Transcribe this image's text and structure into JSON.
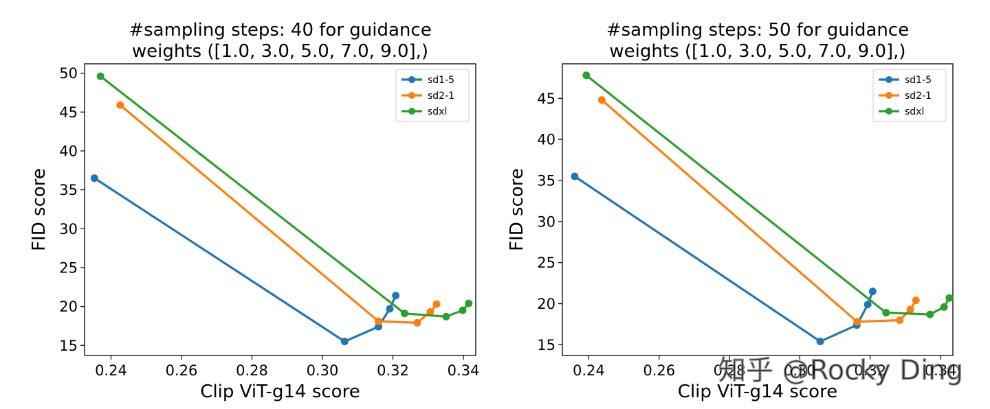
{
  "chart_data": [
    {
      "type": "line",
      "title_lines": [
        "#sampling steps: 40 for guidance",
        "weights ([1.0, 3.0, 5.0, 7.0, 9.0],)"
      ],
      "xlabel": "Clip ViT-g14 score",
      "ylabel": "FID score",
      "xlim": [
        0.2325,
        0.3435
      ],
      "ylim": [
        13.7,
        51.2
      ],
      "xticks": [
        0.24,
        0.26,
        0.28,
        0.3,
        0.32,
        0.34
      ],
      "xtick_labels": [
        "0.24",
        "0.26",
        "0.28",
        "0.30",
        "0.32",
        "0.34"
      ],
      "yticks": [
        15,
        20,
        25,
        30,
        35,
        40,
        45,
        50
      ],
      "ytick_labels": [
        "15",
        "20",
        "25",
        "30",
        "35",
        "40",
        "45",
        "50"
      ],
      "legend_position": "top-right",
      "series": [
        {
          "name": "sd1-5",
          "color": "#1f77b4",
          "x": [
            0.2353,
            0.3063,
            0.3159,
            0.3191,
            0.3208
          ],
          "y": [
            36.5,
            15.5,
            17.4,
            19.7,
            21.4
          ]
        },
        {
          "name": "sd2-1",
          "color": "#ff7f0e",
          "x": [
            0.2426,
            0.3159,
            0.3269,
            0.3306,
            0.3324
          ],
          "y": [
            45.9,
            18.1,
            17.9,
            19.3,
            20.3
          ]
        },
        {
          "name": "sdxl",
          "color": "#2ca02c",
          "x": [
            0.237,
            0.3233,
            0.3351,
            0.3398,
            0.3415
          ],
          "y": [
            49.6,
            19.1,
            18.7,
            19.5,
            20.4
          ]
        }
      ]
    },
    {
      "type": "line",
      "title_lines": [
        "#sampling steps: 50 for guidance",
        "weights ([1.0, 3.0, 5.0, 7.0, 9.0],)"
      ],
      "xlabel": "Clip ViT-g14 score",
      "ylabel": "FID score",
      "xlim": [
        0.2325,
        0.3435
      ],
      "ylim": [
        13.7,
        49.2
      ],
      "xticks": [
        0.24,
        0.26,
        0.28,
        0.3,
        0.32,
        0.34
      ],
      "xtick_labels": [
        "0.24",
        "0.26",
        "0.28",
        "0.30",
        "0.32",
        "0.34"
      ],
      "yticks": [
        15,
        20,
        25,
        30,
        35,
        40,
        45
      ],
      "ytick_labels": [
        "15",
        "20",
        "25",
        "30",
        "35",
        "40",
        "45"
      ],
      "legend_position": "top-right",
      "series": [
        {
          "name": "sd1-5",
          "color": "#1f77b4",
          "x": [
            0.236,
            0.3058,
            0.3162,
            0.3193,
            0.3207
          ],
          "y": [
            35.5,
            15.4,
            17.4,
            19.9,
            21.5
          ]
        },
        {
          "name": "sd2-1",
          "color": "#ff7f0e",
          "x": [
            0.2437,
            0.3163,
            0.3284,
            0.3314,
            0.333
          ],
          "y": [
            44.8,
            17.8,
            18.0,
            19.3,
            20.4
          ]
        },
        {
          "name": "sdxl",
          "color": "#2ca02c",
          "x": [
            0.2393,
            0.3245,
            0.337,
            0.341,
            0.3425
          ],
          "y": [
            47.8,
            18.9,
            18.7,
            19.6,
            20.7
          ]
        }
      ]
    }
  ],
  "watermark": "知乎 @Rocky Ding"
}
